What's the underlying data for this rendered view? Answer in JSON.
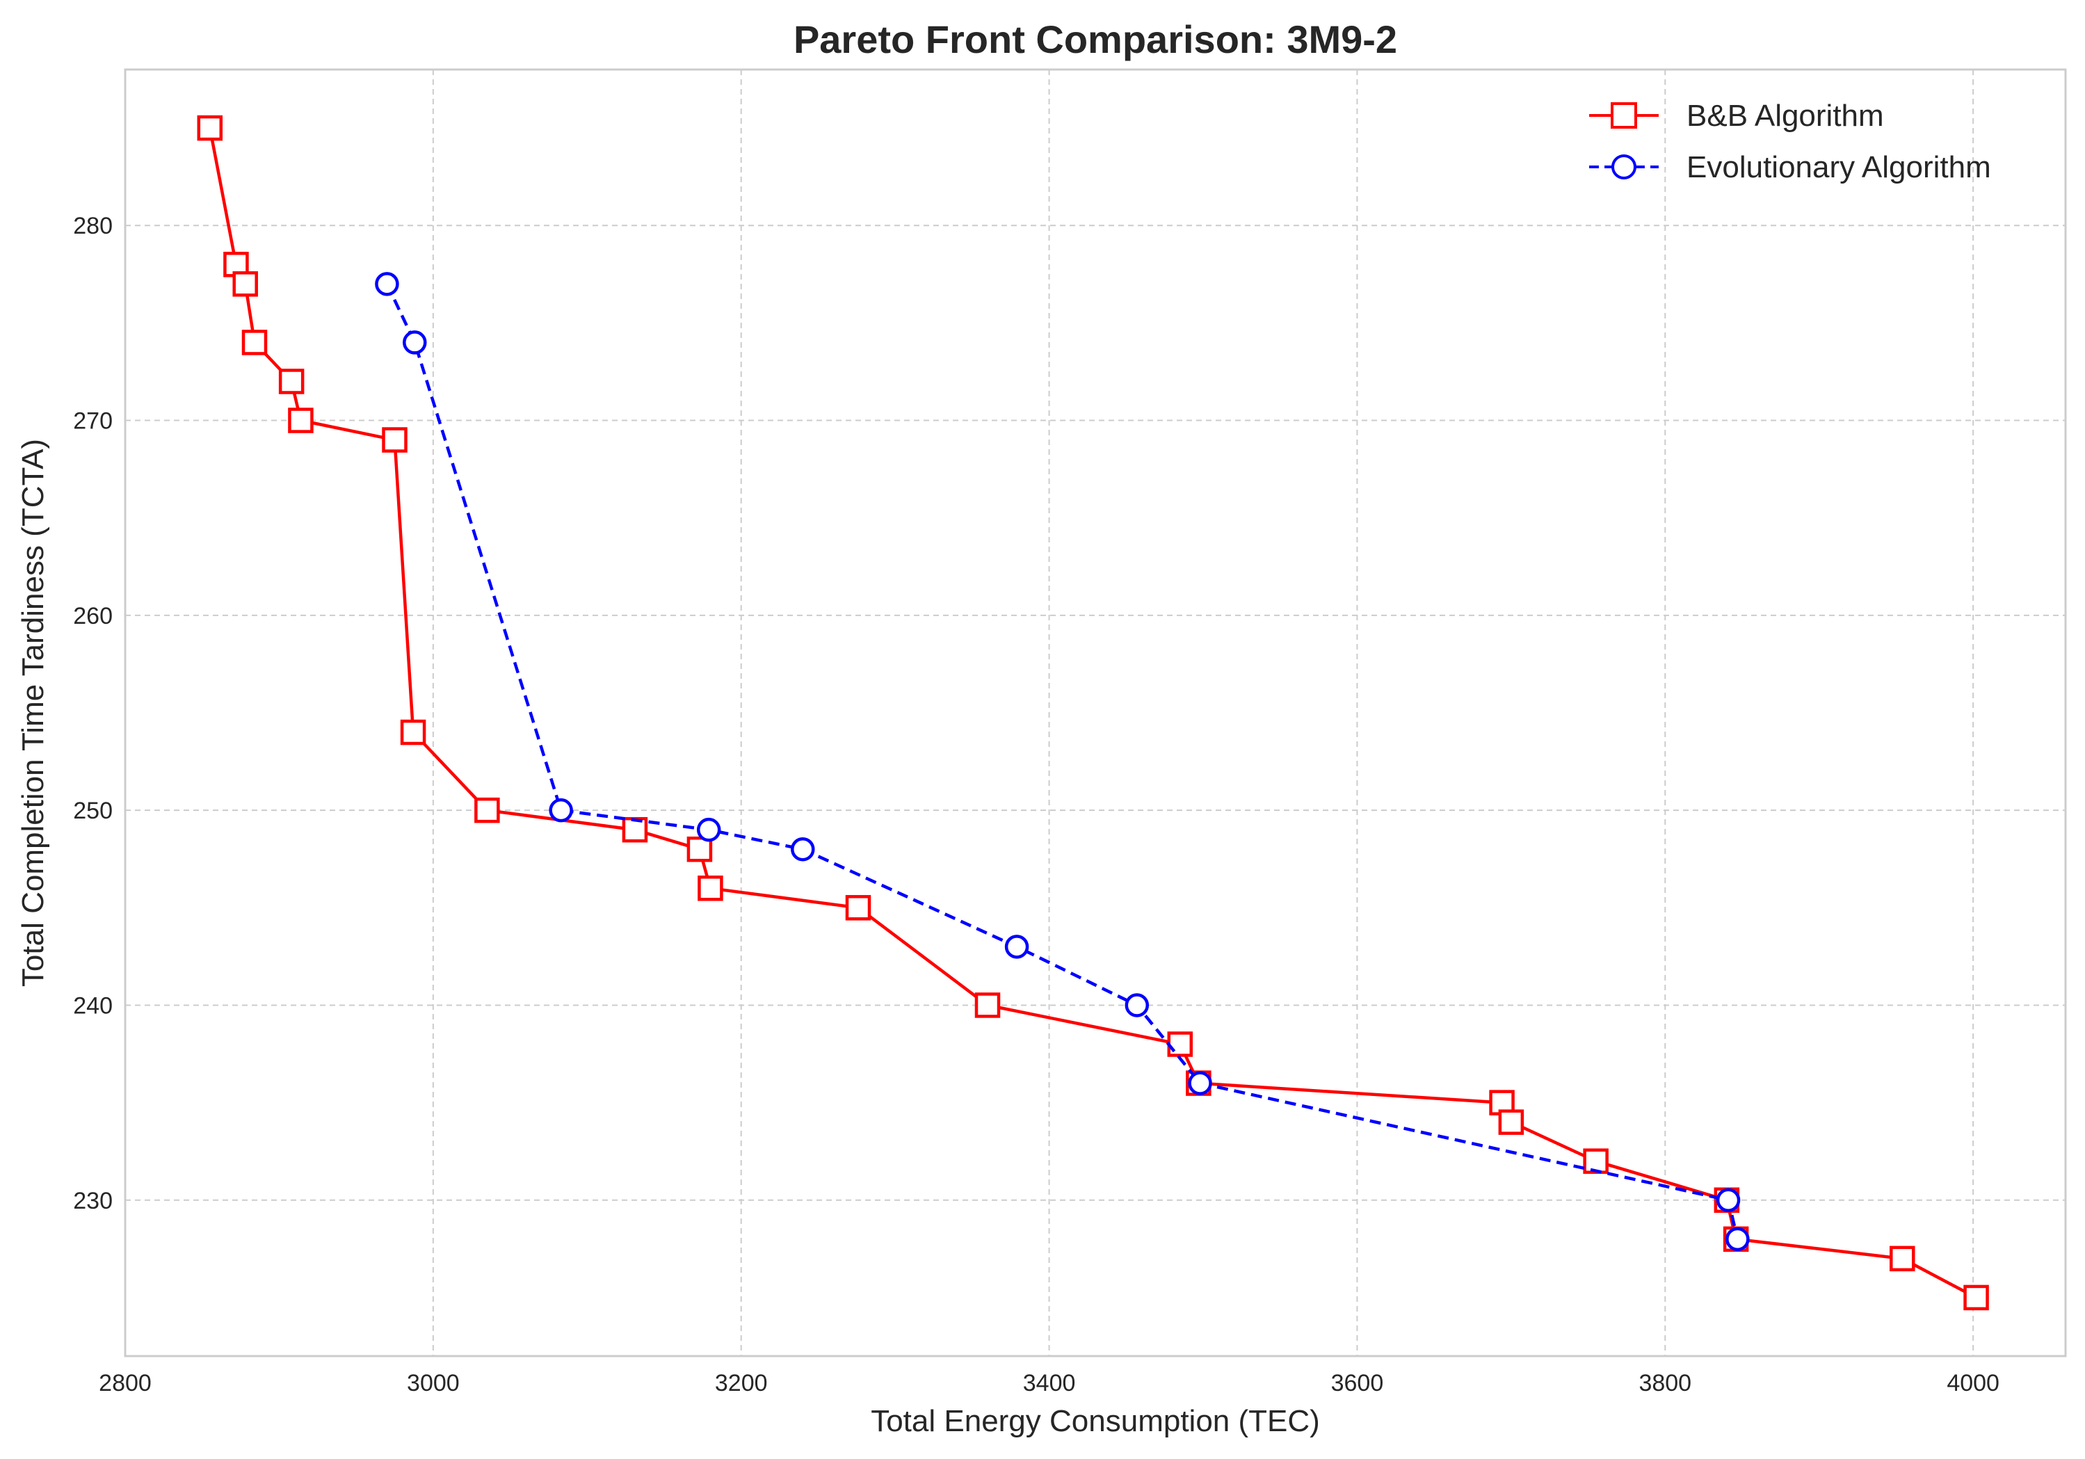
{
  "chart_data": {
    "type": "line",
    "title": "Pareto Front Comparison: 3M9-2",
    "xlabel": "Total Energy Consumption (TEC)",
    "ylabel": "Total Completion Time Tardiness (TCTA)",
    "xlim": [
      2800,
      4060
    ],
    "ylim": [
      222,
      288
    ],
    "xticks": [
      "2800",
      "3000",
      "3200",
      "3400",
      "3600",
      "3800",
      "4000"
    ],
    "yticks": [
      "230",
      "240",
      "250",
      "260",
      "270",
      "280"
    ],
    "grid": true,
    "legend_position": "top-right",
    "series": [
      {
        "name": "B&B Algorithm",
        "color": "#ff0000",
        "line_style": "solid",
        "marker": "square",
        "points": [
          [
            2855,
            285
          ],
          [
            2872,
            278
          ],
          [
            2878,
            277
          ],
          [
            2884,
            274
          ],
          [
            2908,
            272
          ],
          [
            2914,
            270
          ],
          [
            2975,
            269
          ],
          [
            2987,
            254
          ],
          [
            3035,
            250
          ],
          [
            3131,
            249
          ],
          [
            3173,
            248
          ],
          [
            3180,
            246
          ],
          [
            3276,
            245
          ],
          [
            3360,
            240
          ],
          [
            3485,
            238
          ],
          [
            3497,
            236
          ],
          [
            3694,
            235
          ],
          [
            3700,
            234
          ],
          [
            3755,
            232
          ],
          [
            3840,
            230
          ],
          [
            3846,
            228
          ],
          [
            3954,
            227
          ],
          [
            4002,
            225
          ]
        ]
      },
      {
        "name": "Evolutionary Algorithm",
        "color": "#0000ff",
        "line_style": "dashed",
        "marker": "circle",
        "points": [
          [
            2970,
            277
          ],
          [
            2988,
            274
          ],
          [
            3083,
            250
          ],
          [
            3179,
            249
          ],
          [
            3240,
            248
          ],
          [
            3379,
            243
          ],
          [
            3457,
            240
          ],
          [
            3498,
            236
          ],
          [
            3841,
            230
          ],
          [
            3847,
            228
          ]
        ]
      }
    ]
  }
}
